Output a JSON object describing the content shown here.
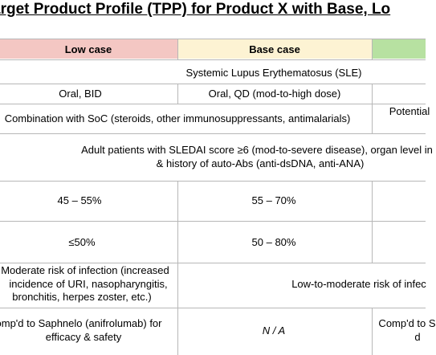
{
  "title": "arget Product Profile (TPP) for Product X with Base, Lo",
  "table": {
    "header": [
      "Low case",
      "Base case"
    ],
    "rows": [
      [
        "Systemic Lupus Erythematosus (SLE)"
      ],
      [
        "Oral, BID",
        "Oral, QD (mod-to-high dose)"
      ],
      [
        "Combination with SoC (steroids, other immunosuppressants, antimalarials)",
        "Potential"
      ],
      [
        [
          "Adult patients with SLEDAI score ≥6 (mod-to-severe disease), organ level in",
          "& history of auto-Abs (anti-dsDNA, anti-ANA)"
        ]
      ],
      [
        "45 – 55%",
        "55 – 70%"
      ],
      [
        "≤50%",
        "50 – 80%"
      ],
      [
        [
          "Moderate risk of infection (increased",
          "incidence of URI, nasopharyngitis,",
          "bronchitis, herpes zoster, etc.)"
        ],
        "Low-to-moderate risk of infec"
      ],
      [
        [
          "omp'd to Saphnelo (anifrolumab) for",
          "efficacy & safety"
        ],
        "N / A",
        [
          "Comp'd to S",
          "d"
        ]
      ]
    ]
  }
}
